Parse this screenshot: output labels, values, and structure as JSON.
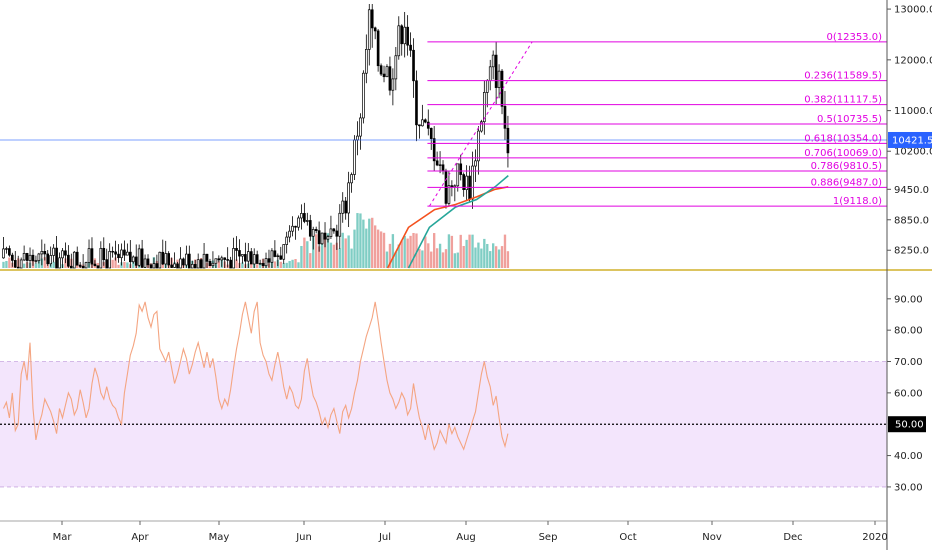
{
  "chart_data": [
    {
      "type": "candlestick",
      "panel": "price",
      "ylim": [
        7900,
        13100
      ],
      "ytick_labels": [
        "13000.0",
        "12000.0",
        "11000.0",
        "10200.0",
        "9450.0",
        "8850.0",
        "8250.0"
      ],
      "ytick_values": [
        13000,
        12000,
        11000,
        10200,
        9450,
        8850,
        8250
      ],
      "last_price": {
        "value": 10421.5,
        "label": "10421.5",
        "color": "#2962ff"
      },
      "fibonacci_levels": [
        {
          "label": "0(12353.0)",
          "value": 12353
        },
        {
          "label": "0.236(11589.5)",
          "value": 11589.5
        },
        {
          "label": "0.382(11117.5)",
          "value": 11117.5
        },
        {
          "label": "0.5(10735.5)",
          "value": 10735.5
        },
        {
          "label": "0.618(10354.0)",
          "value": 10354
        },
        {
          "label": "0.706(10069.0)",
          "value": 10069
        },
        {
          "label": "0.786(9810.5)",
          "value": 9810.5
        },
        {
          "label": "0.886(9487.0)",
          "value": 9487
        },
        {
          "label": "1(9118.0)",
          "value": 9118
        }
      ],
      "fib_color": "#e100e1",
      "trend_line": {
        "from": [
          "2019-07-18",
          9118
        ],
        "to": [
          "2019-08-26",
          12353
        ],
        "color": "#e100e1",
        "style": "dashed"
      },
      "moving_averages": [
        {
          "color": "#f4511e",
          "points": [
            [
              "2019-07-02",
              7900
            ],
            [
              "2019-07-10",
              8700
            ],
            [
              "2019-07-20",
              9050
            ],
            [
              "2019-07-28",
              9150
            ],
            [
              "2019-08-05",
              9300
            ],
            [
              "2019-08-12",
              9450
            ],
            [
              "2019-08-17",
              9500
            ]
          ]
        },
        {
          "color": "#26a69a",
          "points": [
            [
              "2019-07-10",
              7900
            ],
            [
              "2019-07-18",
              8700
            ],
            [
              "2019-07-28",
              9100
            ],
            [
              "2019-08-05",
              9250
            ],
            [
              "2019-08-12",
              9500
            ],
            [
              "2019-08-17",
              9720
            ]
          ]
        }
      ],
      "volume_colors": {
        "up": "#7fcdc4",
        "down": "#f0a09c"
      }
    },
    {
      "type": "line",
      "panel": "rsi",
      "ylim": [
        22,
        96
      ],
      "ytick_labels": [
        "90.00",
        "80.00",
        "70.00",
        "60.00",
        "50.00",
        "40.00",
        "30.00"
      ],
      "ytick_values": [
        90,
        80,
        70,
        60,
        50,
        40,
        30
      ],
      "band": [
        30,
        70
      ],
      "midline": {
        "value": 50,
        "label": "50.00"
      },
      "line_color": "#f4a582",
      "band_color": "#f3e5fc",
      "series": [
        {
          "values": [
            55,
            57,
            52,
            60,
            48,
            50,
            66,
            70,
            64,
            76,
            55,
            45,
            50,
            53,
            58,
            56,
            54,
            51,
            47,
            55,
            52,
            56,
            60,
            58,
            53,
            55,
            61,
            57,
            52,
            55,
            63,
            68,
            65,
            60,
            58,
            62,
            58,
            56,
            55,
            52,
            50,
            60,
            66,
            72,
            75,
            79,
            88,
            86,
            89,
            84,
            81,
            85,
            86,
            74,
            72,
            70,
            73,
            68,
            63,
            66,
            70,
            74,
            71,
            66,
            69,
            73,
            76,
            72,
            68,
            73,
            68,
            71,
            65,
            58,
            55,
            58,
            56,
            61,
            68,
            74,
            79,
            85,
            89,
            84,
            79,
            86,
            89,
            76,
            72,
            70,
            66,
            64,
            69,
            73,
            68,
            62,
            58,
            62,
            60,
            56,
            55,
            58,
            67,
            71,
            64,
            59,
            57,
            54,
            50,
            52,
            49,
            53,
            55,
            51,
            47,
            54,
            56,
            52,
            55,
            60,
            64,
            70,
            74,
            78,
            81,
            84,
            89,
            83,
            76,
            70,
            64,
            60,
            58,
            55,
            57,
            60,
            58,
            53,
            55,
            63,
            57,
            52,
            49,
            45,
            50,
            46,
            42,
            44,
            48,
            46,
            44,
            50,
            47,
            49,
            46,
            44,
            42,
            45,
            48,
            51,
            54,
            60,
            66,
            70,
            65,
            62,
            56,
            59,
            52,
            46,
            43,
            47
          ]
        }
      ]
    }
  ],
  "time_axis": {
    "months": [
      {
        "label": "Mar"
      },
      {
        "label": "Apr"
      },
      {
        "label": "May"
      },
      {
        "label": "Jun"
      },
      {
        "label": "Jul"
      },
      {
        "label": "Aug"
      },
      {
        "label": "Sep"
      },
      {
        "label": "Oct"
      },
      {
        "label": "Nov"
      },
      {
        "label": "Dec"
      },
      {
        "label": "2020"
      }
    ]
  }
}
